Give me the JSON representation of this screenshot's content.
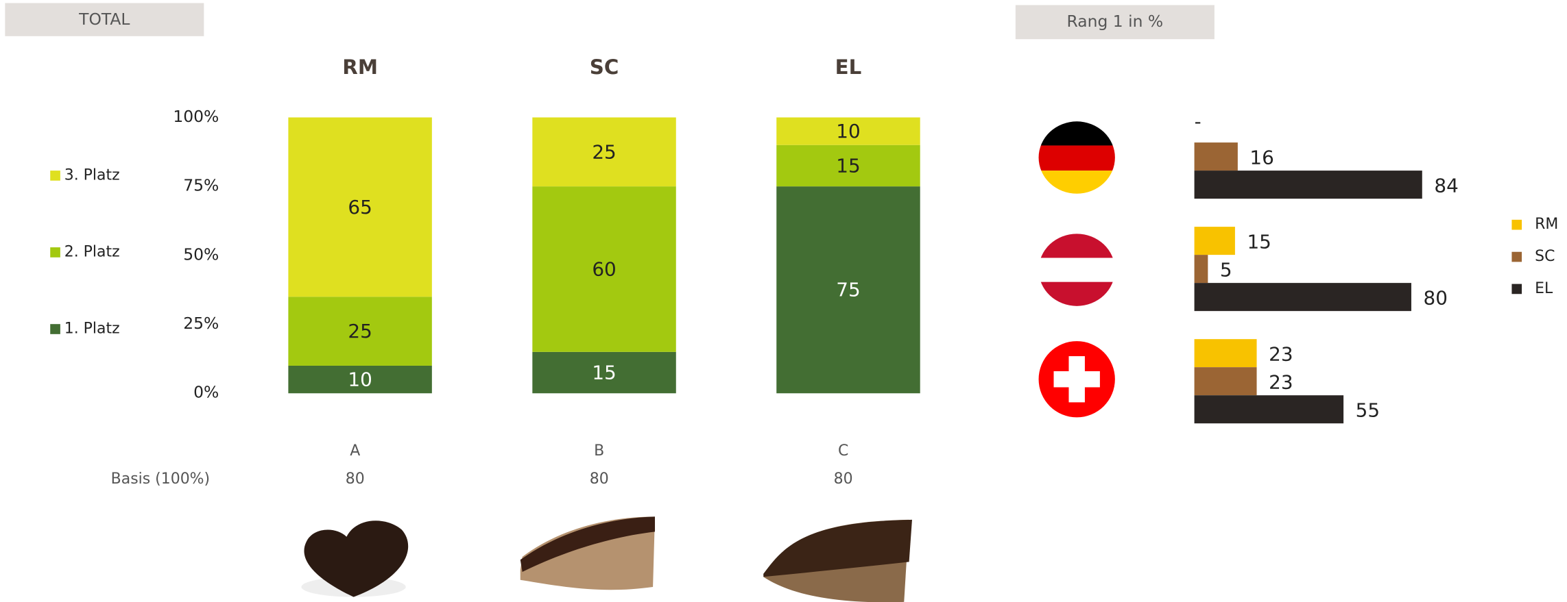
{
  "chart_data": [
    {
      "type": "stacked_bar",
      "title": "TOTAL",
      "categories": [
        "RM",
        "SC",
        "EL"
      ],
      "x_labels": [
        "A",
        "B",
        "C"
      ],
      "basis_label": "Basis (100%)",
      "basis": [
        80,
        80,
        80
      ],
      "ylim": [
        0,
        100
      ],
      "yticks": [
        {
          "value": 0,
          "label": "0%"
        },
        {
          "value": 25,
          "label": "25%"
        },
        {
          "value": 50,
          "label": "50%"
        },
        {
          "value": 75,
          "label": "75%"
        },
        {
          "value": 100,
          "label": "100%"
        }
      ],
      "legend": "left",
      "series": [
        {
          "name": "1. Platz",
          "color": "#436e33",
          "values": [
            10,
            15,
            75
          ]
        },
        {
          "name": "2. Platz",
          "color": "#a3c910",
          "values": [
            25,
            60,
            15
          ]
        },
        {
          "name": "3. Platz",
          "color": "#dfe020",
          "values": [
            65,
            25,
            10
          ]
        }
      ]
    },
    {
      "type": "hbar",
      "title": "Rang 1 in %",
      "categories": [
        null,
        null,
        null
      ],
      "legend": "right",
      "series": [
        {
          "name": "RM",
          "color": "#f8c200",
          "values": [
            null,
            15,
            23
          ],
          "value_labels": [
            "-",
            "15",
            "23"
          ]
        },
        {
          "name": "SC",
          "color": "#9b6534",
          "values": [
            16,
            5,
            23
          ]
        },
        {
          "name": "EL",
          "color": "#2a2523",
          "values": [
            84,
            80,
            55
          ]
        }
      ]
    }
  ]
}
